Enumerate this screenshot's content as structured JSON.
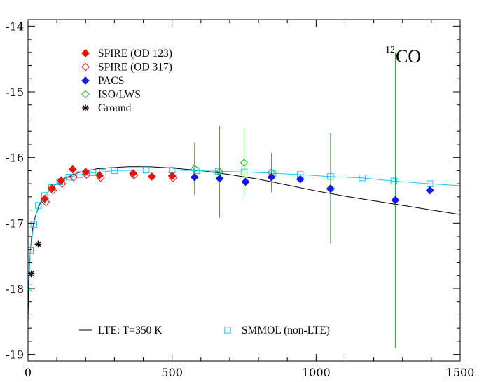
{
  "chart_data": {
    "type": "scatter",
    "title": "",
    "xlabel": "",
    "ylabel": "",
    "xlim": [
      0,
      1500
    ],
    "ylim": [
      -19.1,
      -13.9
    ],
    "x_ticks": [
      0,
      500,
      1000,
      1500
    ],
    "y_ticks": [
      -14,
      -15,
      -16,
      -17,
      -18,
      -19
    ],
    "x_tick_labels": [
      "0",
      "500",
      "1000",
      "1500"
    ],
    "y_tick_labels": [
      "-14",
      "-15",
      "-16",
      "-17",
      "-18",
      "-19"
    ],
    "grid": false,
    "annotation": {
      "sup": "12",
      "text": "CO"
    },
    "legend_top": [
      {
        "series": "spire123",
        "label": "SPIRE (OD 123)"
      },
      {
        "series": "spire317",
        "label": "SPIRE (OD 317)"
      },
      {
        "series": "pacs",
        "label": "PACS"
      },
      {
        "series": "iso",
        "label": "ISO/LWS"
      },
      {
        "series": "ground",
        "label": "Ground"
      }
    ],
    "legend_bottom": [
      {
        "series": "lte",
        "label": "LTE: T=350 K"
      },
      {
        "series": "smmol",
        "label": "SMMOL (non-LTE)"
      }
    ],
    "colors": {
      "spire123": "#e8120c",
      "spire317": "#e8120c",
      "pacs": "#1818e8",
      "iso": "#2ea82e",
      "ground": "#000000",
      "lte": "#000000",
      "smmol": "#1ec4f0",
      "errorbar": "#2ea82e"
    },
    "series": [
      {
        "id": "spire123",
        "marker": "diamond-filled",
        "points": [
          [
            58,
            -16.63
          ],
          [
            83,
            -16.47
          ],
          [
            115,
            -16.35
          ],
          [
            155,
            -16.18
          ],
          [
            200,
            -16.22
          ],
          [
            248,
            -16.27
          ],
          [
            365,
            -16.24
          ],
          [
            430,
            -16.29
          ],
          [
            500,
            -16.28
          ]
        ]
      },
      {
        "id": "spire317",
        "marker": "diamond-open",
        "points": [
          [
            62,
            -16.68
          ],
          [
            86,
            -16.5
          ],
          [
            118,
            -16.4
          ],
          [
            158,
            -16.3
          ],
          [
            203,
            -16.26
          ],
          [
            252,
            -16.31
          ],
          [
            368,
            -16.27
          ],
          [
            503,
            -16.31
          ]
        ]
      },
      {
        "id": "pacs",
        "marker": "diamond-filled",
        "points": [
          [
            578,
            -16.3
          ],
          [
            665,
            -16.32
          ],
          [
            755,
            -16.37
          ],
          [
            845,
            -16.3
          ],
          [
            945,
            -16.33
          ],
          [
            1050,
            -16.48
          ],
          [
            1275,
            -16.65
          ],
          [
            1395,
            -16.5
          ]
        ]
      },
      {
        "id": "iso",
        "marker": "diamond-open",
        "points": [
          [
            578,
            -16.17,
            0.4
          ],
          [
            665,
            -16.22,
            0.7
          ],
          [
            750,
            -16.08,
            0.52
          ],
          [
            845,
            -16.23,
            0.3
          ],
          [
            1050,
            -16.47,
            0.84
          ],
          [
            1275,
            -16.65,
            2.25
          ]
        ]
      },
      {
        "id": "ground",
        "marker": "asterisk",
        "points": [
          [
            11,
            -17.77
          ],
          [
            35,
            -17.32
          ]
        ]
      },
      {
        "id": "smmol",
        "marker": "square-open",
        "points": [
          [
            3,
            -17.98
          ],
          [
            8,
            -17.42
          ],
          [
            20,
            -17.02
          ],
          [
            36,
            -16.73
          ],
          [
            58,
            -16.58
          ],
          [
            82,
            -16.46
          ],
          [
            110,
            -16.37
          ],
          [
            142,
            -16.3
          ],
          [
            180,
            -16.26
          ],
          [
            225,
            -16.23
          ],
          [
            260,
            -16.22
          ],
          [
            300,
            -16.2
          ],
          [
            410,
            -16.19
          ],
          [
            500,
            -16.19
          ],
          [
            585,
            -16.2
          ],
          [
            660,
            -16.21
          ],
          [
            750,
            -16.22
          ],
          [
            850,
            -16.24
          ],
          [
            945,
            -16.26
          ],
          [
            1050,
            -16.29
          ],
          [
            1160,
            -16.31
          ],
          [
            1270,
            -16.36
          ],
          [
            1395,
            -16.4
          ]
        ]
      },
      {
        "id": "lte",
        "marker": "line",
        "points": [
          [
            0,
            -18.5
          ],
          [
            3,
            -17.85
          ],
          [
            8,
            -17.42
          ],
          [
            15,
            -17.1
          ],
          [
            25,
            -16.9
          ],
          [
            40,
            -16.72
          ],
          [
            60,
            -16.57
          ],
          [
            90,
            -16.43
          ],
          [
            125,
            -16.32
          ],
          [
            175,
            -16.23
          ],
          [
            240,
            -16.17
          ],
          [
            300,
            -16.15
          ],
          [
            350,
            -16.14
          ],
          [
            420,
            -16.14
          ],
          [
            500,
            -16.16
          ],
          [
            600,
            -16.2
          ],
          [
            700,
            -16.26
          ],
          [
            800,
            -16.33
          ],
          [
            900,
            -16.42
          ],
          [
            1000,
            -16.51
          ],
          [
            1100,
            -16.59
          ],
          [
            1200,
            -16.66
          ],
          [
            1300,
            -16.73
          ],
          [
            1400,
            -16.8
          ],
          [
            1500,
            -16.87
          ]
        ]
      },
      {
        "id": "smmol_line",
        "marker": "line",
        "points": [
          [
            3,
            -17.98
          ],
          [
            8,
            -17.42
          ],
          [
            20,
            -17.02
          ],
          [
            36,
            -16.73
          ],
          [
            58,
            -16.58
          ],
          [
            82,
            -16.46
          ],
          [
            110,
            -16.37
          ],
          [
            142,
            -16.3
          ],
          [
            180,
            -16.26
          ],
          [
            225,
            -16.23
          ],
          [
            260,
            -16.22
          ],
          [
            300,
            -16.2
          ],
          [
            410,
            -16.19
          ],
          [
            500,
            -16.19
          ],
          [
            585,
            -16.2
          ],
          [
            660,
            -16.21
          ],
          [
            750,
            -16.22
          ],
          [
            850,
            -16.24
          ],
          [
            945,
            -16.26
          ],
          [
            1050,
            -16.29
          ],
          [
            1160,
            -16.31
          ],
          [
            1270,
            -16.36
          ],
          [
            1395,
            -16.4
          ],
          [
            1500,
            -16.43
          ]
        ]
      }
    ]
  }
}
